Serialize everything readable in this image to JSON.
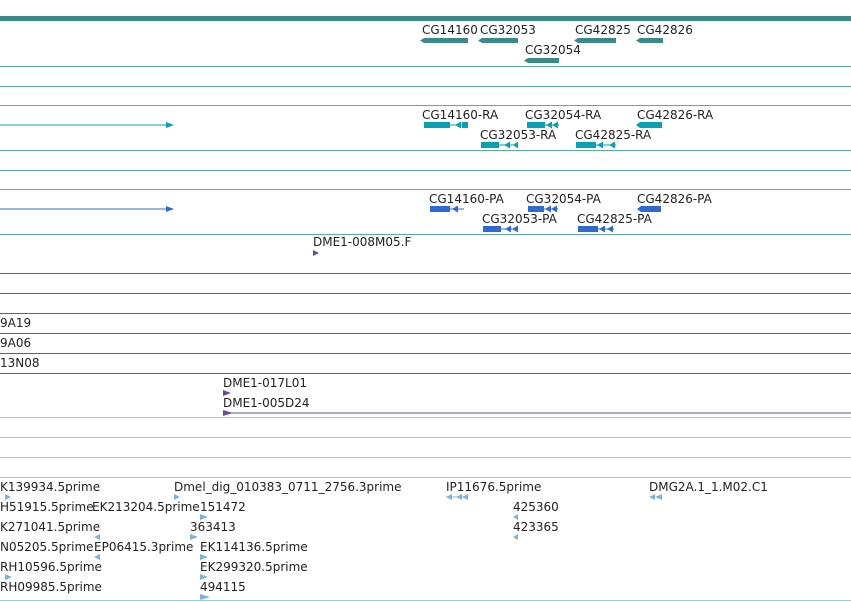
{
  "colors": {
    "gene": "#3a8a8a",
    "transcript": "#0aa0b4",
    "protein": "#2e6ad0",
    "clone": "#6a4aa0",
    "est": "#7ab4dc",
    "divider_teal": "#5aaab0",
    "divider_purple": "#6a5a8a",
    "divider_light": "#9ccfd4",
    "label": "#222222"
  },
  "genes": [
    {
      "name": "CG14160",
      "strand": "minus"
    },
    {
      "name": "CG32053",
      "strand": "minus"
    },
    {
      "name": "CG42825",
      "strand": "minus"
    },
    {
      "name": "CG42826",
      "strand": "minus"
    },
    {
      "name": "CG32054",
      "strand": "minus"
    }
  ],
  "transcripts": [
    {
      "name": "CG14160-RA",
      "strand": "minus"
    },
    {
      "name": "CG32054-RA",
      "strand": "minus"
    },
    {
      "name": "CG42826-RA",
      "strand": "minus"
    },
    {
      "name": "CG32053-RA",
      "strand": "minus"
    },
    {
      "name": "CG42825-RA",
      "strand": "minus"
    }
  ],
  "proteins": [
    {
      "name": "CG14160-PA",
      "strand": "minus"
    },
    {
      "name": "CG32054-PA",
      "strand": "minus"
    },
    {
      "name": "CG42826-PA",
      "strand": "minus"
    },
    {
      "name": "CG32053-PA",
      "strand": "minus"
    },
    {
      "name": "CG42825-PA",
      "strand": "minus"
    }
  ],
  "clones": [
    {
      "name": "DME1-008M05.F"
    },
    {
      "name": "9A19"
    },
    {
      "name": "9A06"
    },
    {
      "name": "13N08"
    },
    {
      "name": "DME1-017L01"
    },
    {
      "name": "DME1-005D24"
    }
  ],
  "ests": [
    {
      "name": "K139934.5prime"
    },
    {
      "name": "Dmel_dig_010383_0711_2756.3prime"
    },
    {
      "name": "IP11676.5prime"
    },
    {
      "name": "DMG2A.1_1.M02.C1"
    },
    {
      "name": "H51915.5prime"
    },
    {
      "name": "EK213204.5prime"
    },
    {
      "name": "151472"
    },
    {
      "name": "425360"
    },
    {
      "name": "K271041.5prime"
    },
    {
      "name": "363413"
    },
    {
      "name": "423365"
    },
    {
      "name": "N05205.5prime"
    },
    {
      "name": "EP06415.3prime"
    },
    {
      "name": "EK114136.5prime"
    },
    {
      "name": "RH10596.5prime"
    },
    {
      "name": "EK299320.5prime"
    },
    {
      "name": "RH09985.5prime"
    },
    {
      "name": "494115"
    }
  ]
}
